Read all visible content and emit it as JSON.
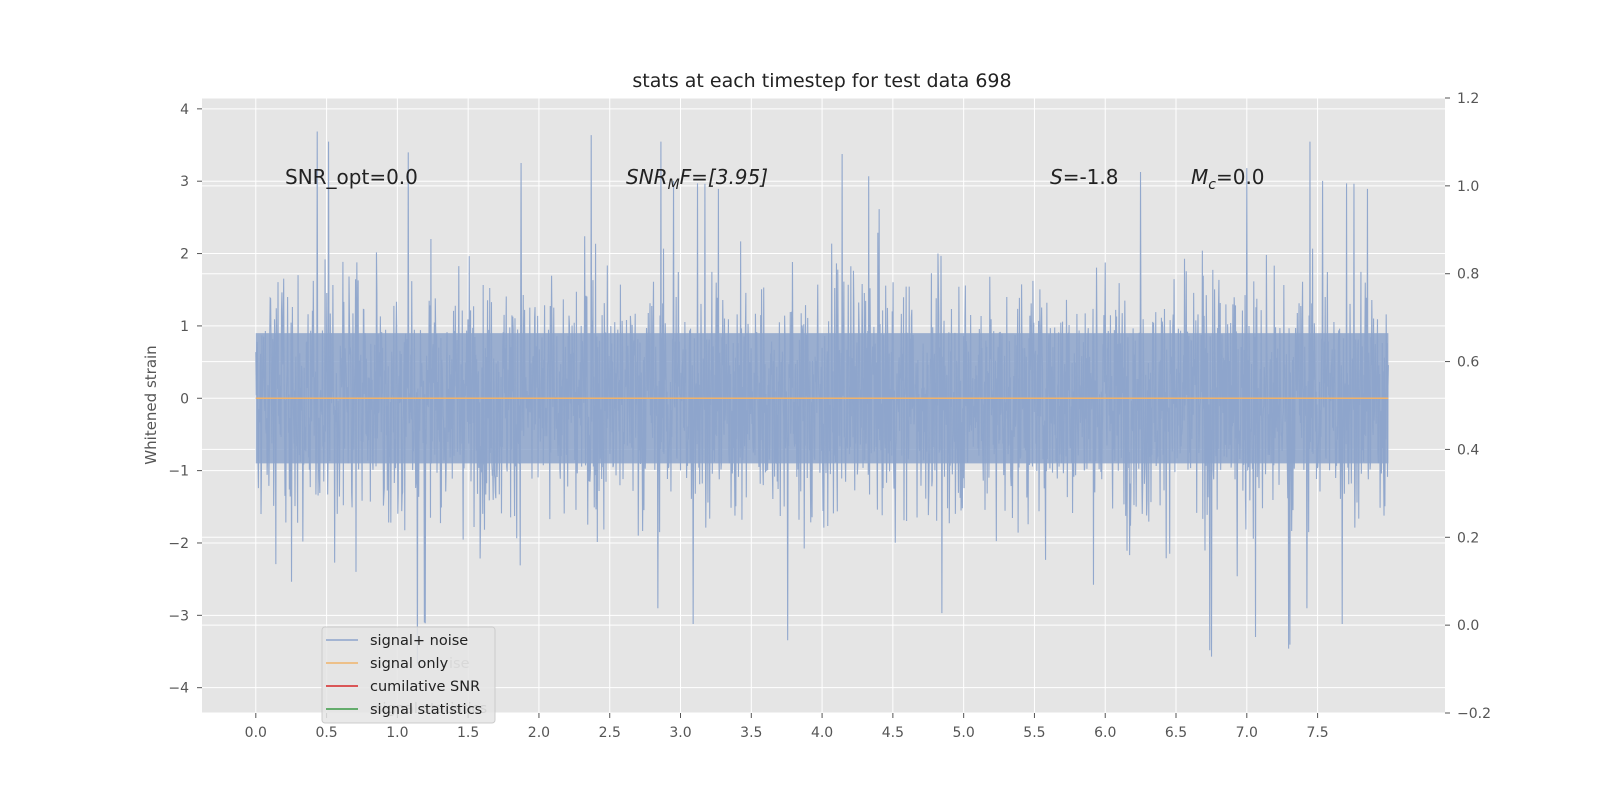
{
  "chart_data": {
    "type": "line",
    "title": "stats at each timestep for test data 698",
    "ylabel": "Whitened strain",
    "xlabel": "",
    "xlim": [
      -0.38,
      8.4
    ],
    "ylim": [
      -4.35,
      4.15
    ],
    "y2lim": [
      -0.2,
      1.2
    ],
    "x_ticks": [
      "0.0",
      "0.5",
      "1.0",
      "1.5",
      "2.0",
      "2.5",
      "3.0",
      "3.5",
      "4.0",
      "4.5",
      "5.0",
      "5.5",
      "6.0",
      "6.5",
      "7.0",
      "7.5"
    ],
    "y_ticks": [
      "4",
      "3",
      "2",
      "1",
      "0",
      "−1",
      "−2",
      "−3",
      "−4"
    ],
    "y2_ticks": [
      "1.2",
      "1.0",
      "0.8",
      "0.6",
      "0.4",
      "0.2",
      "0.0",
      "−0.2"
    ],
    "grid": true,
    "legend_position": "lower-left",
    "annotations": {
      "snr_opt": "SNR_opt=0.0",
      "snr_mf": {
        "main": "SNR",
        "sub": "M",
        "rest": "F=[3.95]"
      },
      "s_stat": {
        "var": "S",
        "rest": "=-1.8"
      },
      "mc": {
        "var": "M",
        "sub": "c",
        "rest": "=0.0"
      }
    },
    "series": [
      {
        "name": "signal+ noise",
        "color": "#8da4cb",
        "x_range": [
          0.0,
          8.0
        ],
        "description_values": {
          "typical_min": -2.0,
          "typical_max": 2.2,
          "peak_max": 3.8,
          "peak_min": -4.0
        }
      },
      {
        "name": "signal only",
        "color": "#f0b36b",
        "x_range": [
          0.0,
          8.0
        ],
        "values": [
          0.0,
          0.0
        ]
      },
      {
        "name": "cumilative SNR",
        "color": "#d62728"
      },
      {
        "name": "signal statistics",
        "color": "#3a9a45"
      }
    ],
    "legend_ghost": [
      "ise",
      "signal statistics"
    ]
  },
  "colors": {
    "axes_bg": "#e5e5e5",
    "grid": "#ffffff",
    "tick": "#555555"
  }
}
